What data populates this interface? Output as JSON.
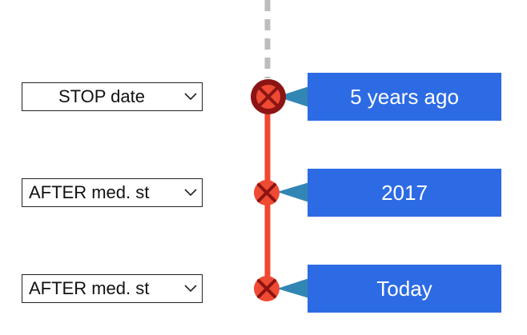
{
  "colors": {
    "line_red": "#f1472f",
    "marker_red": "#ef4a33",
    "marker_dark": "#8c1414",
    "marker_first_fill": "#b51e1e",
    "dash_gray": "#bdbdbd",
    "connector_teal": "#3186b4",
    "date_box_blue": "#2d6be4"
  },
  "rows": [
    {
      "select_value": "STOP date",
      "date_label": "5 years ago",
      "marker_icon": "x-circle-icon",
      "dropdown_icon": "chevron-down-icon"
    },
    {
      "select_value": "AFTER med. st",
      "date_label": "2017",
      "marker_icon": "x-circle-icon",
      "dropdown_icon": "chevron-down-icon"
    },
    {
      "select_value": "AFTER med. st",
      "date_label": "Today",
      "marker_icon": "x-circle-icon",
      "dropdown_icon": "chevron-down-icon"
    }
  ]
}
